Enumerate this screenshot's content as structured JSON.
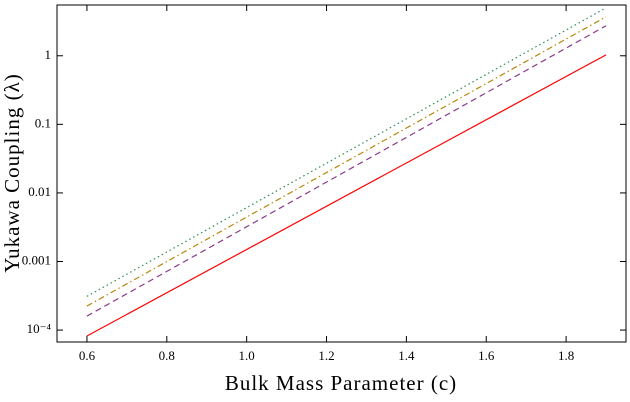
{
  "chart_data": {
    "type": "line",
    "xlabel": "Bulk Mass Parameter (c)",
    "ylabel": "Yukawa Coupling (λ)",
    "x": [
      0.6,
      1.9
    ],
    "series": [
      {
        "color": "#ff0000",
        "dash": "solid",
        "values": [
          8.2e-05,
          1.03
        ]
      },
      {
        "color": "#8b3a8b",
        "dash": "dashed",
        "values": [
          0.00016,
          2.74
        ]
      },
      {
        "color": "#b8860b",
        "dash": "dashdot",
        "values": [
          0.000224,
          3.7
        ]
      },
      {
        "color": "#2e8b57",
        "dash": "dotted",
        "values": [
          0.00031,
          5.0
        ]
      }
    ],
    "xlim": [
      0.525,
      1.95
    ],
    "ylim": [
      6.7e-05,
      5.5
    ],
    "log_y": true,
    "xticks": [
      {
        "value": 0.6,
        "label": "0.6"
      },
      {
        "value": 0.8,
        "label": "0.8"
      },
      {
        "value": 1.0,
        "label": "1.0"
      },
      {
        "value": 1.2,
        "label": "1.2"
      },
      {
        "value": 1.4,
        "label": "1.4"
      },
      {
        "value": 1.6,
        "label": "1.6"
      },
      {
        "value": 1.8,
        "label": "1.8"
      }
    ],
    "yticks": [
      {
        "value": 0.0001,
        "label": "10⁻⁴"
      },
      0.001,
      0.01,
      0.1,
      1
    ]
  }
}
